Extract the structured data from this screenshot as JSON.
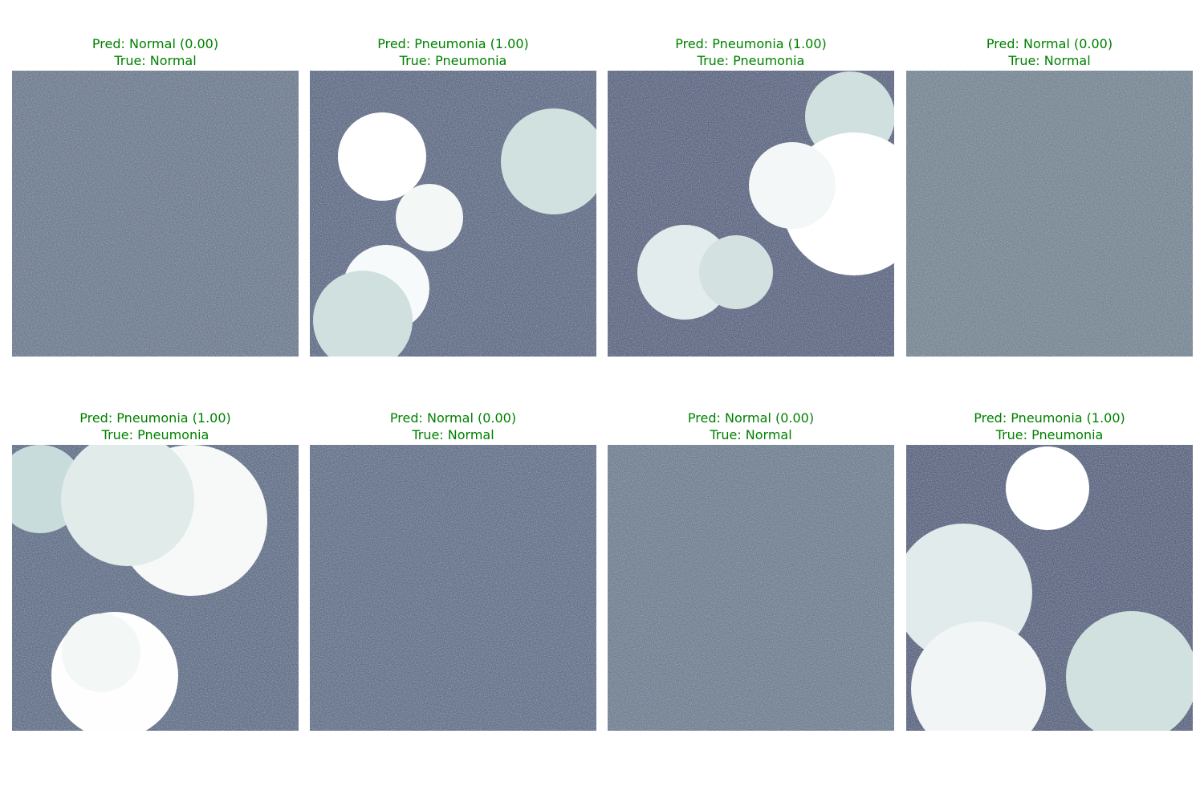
{
  "colors": {
    "title": "#008000"
  },
  "panels": [
    {
      "pred": "Pred: Normal (0.00)",
      "true_label": "True: Normal",
      "base": "#6a788a"
    },
    {
      "pred": "Pred: Pneumonia (1.00)",
      "true_label": "True: Pneumonia",
      "base": "#5a6680"
    },
    {
      "pred": "Pred: Pneumonia (1.00)",
      "true_label": "True: Pneumonia",
      "base": "#565f7a"
    },
    {
      "pred": "Pred: Normal (0.00)",
      "true_label": "True: Normal",
      "base": "#74848f"
    },
    {
      "pred": "Pred: Pneumonia (1.00)",
      "true_label": "True: Pneumonia",
      "base": "#5d6a82"
    },
    {
      "pred": "Pred: Normal (0.00)",
      "true_label": "True: Normal",
      "base": "#5f6c84"
    },
    {
      "pred": "Pred: Normal (0.00)",
      "true_label": "True: Normal",
      "base": "#6d7c8d"
    },
    {
      "pred": "Pred: Pneumonia (1.00)",
      "true_label": "True: Pneumonia",
      "base": "#545d78"
    }
  ]
}
